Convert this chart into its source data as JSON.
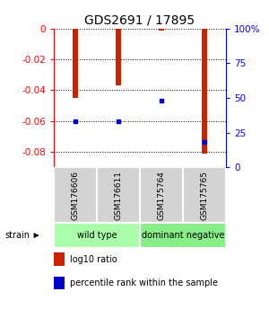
{
  "title": "GDS2691 / 17895",
  "samples": [
    "GSM176606",
    "GSM176611",
    "GSM175764",
    "GSM175765"
  ],
  "log10_ratio": [
    -0.045,
    -0.037,
    -0.001,
    -0.081
  ],
  "percentile": [
    33,
    33,
    48,
    18
  ],
  "groups": [
    {
      "label": "wild type",
      "samples": [
        0,
        1
      ],
      "color": "#aaffaa"
    },
    {
      "label": "dominant negative",
      "samples": [
        2,
        3
      ],
      "color": "#88ee88"
    }
  ],
  "bar_color": "#cc2200",
  "percentile_color": "#0000cc",
  "ylim_left": [
    -0.09,
    0.0
  ],
  "ylim_right": [
    0,
    100
  ],
  "yticks_left": [
    0,
    -0.02,
    -0.04,
    -0.06,
    -0.08
  ],
  "yticks_right": [
    0,
    25,
    50,
    75,
    100
  ],
  "background_color": "#ffffff",
  "plot_bg": "#ffffff",
  "strain_label": "strain",
  "bar_width": 0.12,
  "legend": [
    {
      "color": "#cc2200",
      "label": "log10 ratio"
    },
    {
      "color": "#0000cc",
      "label": "percentile rank within the sample"
    }
  ]
}
